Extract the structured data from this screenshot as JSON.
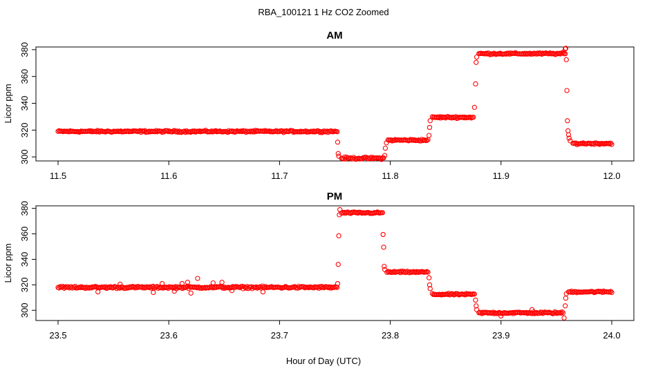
{
  "figure": {
    "title": "RBA_100121  1 Hz CO2 Zoomed",
    "xlabel": "Hour of Day (UTC)"
  },
  "chart_data": [
    {
      "type": "scatter",
      "title": "AM",
      "xlabel": "Hour of Day (UTC)",
      "ylabel": "Licor ppm",
      "xlim": [
        11.5,
        12.0
      ],
      "ylim": [
        297,
        382
      ],
      "x_ticks": [
        "11.5",
        "11.6",
        "11.7",
        "11.8",
        "11.9",
        "12.0"
      ],
      "y_ticks": [
        "300",
        "320",
        "340",
        "360",
        "380"
      ],
      "grid": false,
      "color": "#ff0000",
      "marker": "open-circle",
      "segments": [
        {
          "x_start": 11.5,
          "x_end": 11.752,
          "level": 319.0,
          "noise": 1.0
        },
        {
          "x_start": 11.756,
          "x_end": 11.794,
          "level": 299.0,
          "noise": 1.2
        },
        {
          "x_start": 11.798,
          "x_end": 11.834,
          "level": 312.5,
          "noise": 1.0
        },
        {
          "x_start": 11.838,
          "x_end": 11.875,
          "level": 329.5,
          "noise": 1.0
        },
        {
          "x_start": 11.88,
          "x_end": 11.958,
          "level": 377.0,
          "noise": 1.0
        },
        {
          "x_start": 11.965,
          "x_end": 12.0,
          "level": 310.0,
          "noise": 1.0
        }
      ],
      "transitions": [
        {
          "x": 11.7525,
          "y": 311.0
        },
        {
          "x": 11.753,
          "y": 302.5
        },
        {
          "x": 11.7535,
          "y": 300.5
        },
        {
          "x": 11.795,
          "y": 301.0
        },
        {
          "x": 11.7955,
          "y": 306.5
        },
        {
          "x": 11.7965,
          "y": 310.5
        },
        {
          "x": 11.835,
          "y": 316.0
        },
        {
          "x": 11.8355,
          "y": 322.0
        },
        {
          "x": 11.836,
          "y": 327.0
        },
        {
          "x": 11.876,
          "y": 337.0
        },
        {
          "x": 11.877,
          "y": 354.5
        },
        {
          "x": 11.8775,
          "y": 370.5
        },
        {
          "x": 11.878,
          "y": 374.5
        },
        {
          "x": 11.958,
          "y": 380.5
        },
        {
          "x": 11.9585,
          "y": 381.0
        },
        {
          "x": 11.959,
          "y": 372.5
        },
        {
          "x": 11.9595,
          "y": 349.5
        },
        {
          "x": 11.96,
          "y": 327.0
        },
        {
          "x": 11.9605,
          "y": 319.5
        },
        {
          "x": 11.961,
          "y": 316.5
        },
        {
          "x": 11.9615,
          "y": 314.0
        },
        {
          "x": 11.9625,
          "y": 312.0
        }
      ]
    },
    {
      "type": "scatter",
      "title": "PM",
      "xlabel": "Hour of Day (UTC)",
      "ylabel": "Licor ppm",
      "xlim": [
        23.5,
        24.0
      ],
      "ylim": [
        292,
        382
      ],
      "x_ticks": [
        "23.5",
        "23.6",
        "23.7",
        "23.8",
        "23.9",
        "24.0"
      ],
      "y_ticks": [
        "300",
        "320",
        "340",
        "360",
        "380"
      ],
      "grid": false,
      "color": "#ff0000",
      "marker": "open-circle",
      "segments": [
        {
          "x_start": 23.5,
          "x_end": 23.752,
          "level": 318.0,
          "noise": 1.3
        },
        {
          "x_start": 23.756,
          "x_end": 23.793,
          "level": 376.5,
          "noise": 1.0
        },
        {
          "x_start": 23.797,
          "x_end": 23.834,
          "level": 330.0,
          "noise": 1.0
        },
        {
          "x_start": 23.838,
          "x_end": 23.876,
          "level": 312.5,
          "noise": 1.0
        },
        {
          "x_start": 23.88,
          "x_end": 23.956,
          "level": 298.0,
          "noise": 1.2
        },
        {
          "x_start": 23.961,
          "x_end": 24.0,
          "level": 314.5,
          "noise": 1.0
        }
      ],
      "transitions": [
        {
          "x": 23.7525,
          "y": 321.0
        },
        {
          "x": 23.753,
          "y": 336.0
        },
        {
          "x": 23.7535,
          "y": 358.5
        },
        {
          "x": 23.754,
          "y": 375.0
        },
        {
          "x": 23.7545,
          "y": 379.0
        },
        {
          "x": 23.7935,
          "y": 359.5
        },
        {
          "x": 23.794,
          "y": 349.5
        },
        {
          "x": 23.7945,
          "y": 334.5
        },
        {
          "x": 23.795,
          "y": 332.0
        },
        {
          "x": 23.835,
          "y": 325.5
        },
        {
          "x": 23.8355,
          "y": 320.0
        },
        {
          "x": 23.836,
          "y": 317.0
        },
        {
          "x": 23.877,
          "y": 308.0
        },
        {
          "x": 23.8775,
          "y": 303.5
        },
        {
          "x": 23.878,
          "y": 300.5
        },
        {
          "x": 23.957,
          "y": 294.0
        },
        {
          "x": 23.958,
          "y": 303.5
        },
        {
          "x": 23.9585,
          "y": 309.5
        },
        {
          "x": 23.959,
          "y": 313.0
        },
        {
          "x": 23.626,
          "y": 325.0
        },
        {
          "x": 23.617,
          "y": 322.0
        },
        {
          "x": 23.594,
          "y": 321.0
        },
        {
          "x": 23.64,
          "y": 321.5
        },
        {
          "x": 23.605,
          "y": 315.0
        },
        {
          "x": 23.62,
          "y": 313.5
        },
        {
          "x": 23.586,
          "y": 314.0
        },
        {
          "x": 23.657,
          "y": 315.5
        },
        {
          "x": 23.612,
          "y": 321.0
        },
        {
          "x": 23.648,
          "y": 322.0
        },
        {
          "x": 23.685,
          "y": 314.5
        },
        {
          "x": 23.536,
          "y": 314.5
        },
        {
          "x": 23.556,
          "y": 320.5
        },
        {
          "x": 23.9,
          "y": 295.5
        },
        {
          "x": 23.928,
          "y": 300.5
        }
      ]
    }
  ]
}
